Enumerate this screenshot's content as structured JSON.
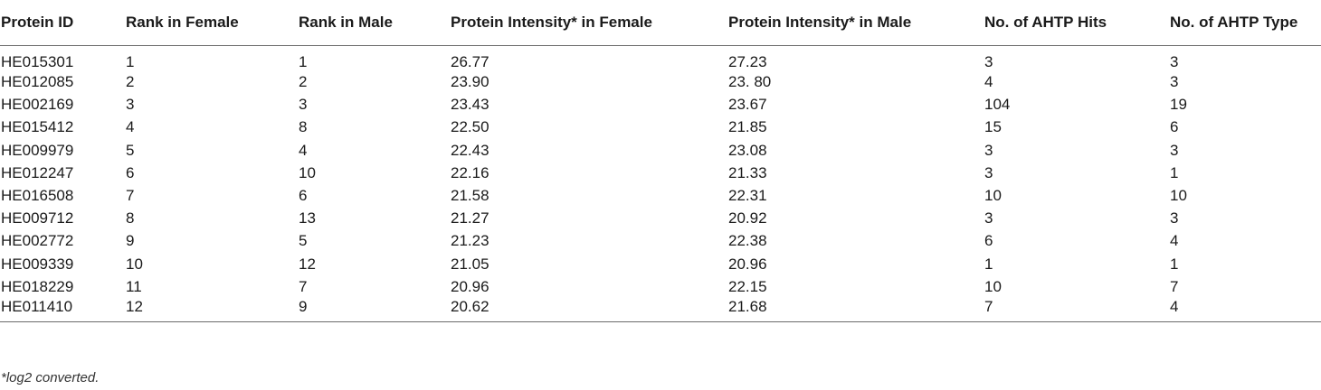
{
  "table": {
    "headers": [
      "Protein ID",
      "Rank in Female",
      "Rank in Male",
      "Protein Intensity* in Female",
      "Protein Intensity* in Male",
      "No. of AHTP Hits",
      "No. of AHTP Type"
    ],
    "rows": [
      [
        "HE015301",
        "1",
        "1",
        "26.77",
        "27.23",
        "3",
        "3"
      ],
      [
        "HE012085",
        "2",
        "2",
        "23.90",
        "23. 80",
        "4",
        "3"
      ],
      [
        "HE002169",
        "3",
        "3",
        "23.43",
        "23.67",
        "104",
        "19"
      ],
      [
        "HE015412",
        "4",
        "8",
        "22.50",
        "21.85",
        "15",
        "6"
      ],
      [
        "HE009979",
        "5",
        "4",
        "22.43",
        "23.08",
        "3",
        "3"
      ],
      [
        "HE012247",
        "6",
        "10",
        "22.16",
        "21.33",
        "3",
        "1"
      ],
      [
        "HE016508",
        "7",
        "6",
        "21.58",
        "22.31",
        "10",
        "10"
      ],
      [
        "HE009712",
        "8",
        "13",
        "21.27",
        "20.92",
        "3",
        "3"
      ],
      [
        "HE002772",
        "9",
        "5",
        "21.23",
        "22.38",
        "6",
        "4"
      ],
      [
        "HE009339",
        "10",
        "12",
        "21.05",
        "20.96",
        "1",
        "1"
      ],
      [
        "HE018229",
        "11",
        "7",
        "20.96",
        "22.15",
        "10",
        "7"
      ],
      [
        "HE011410",
        "12",
        "9",
        "20.62",
        "21.68",
        "7",
        "4"
      ]
    ]
  },
  "footnote": "*log2 converted."
}
